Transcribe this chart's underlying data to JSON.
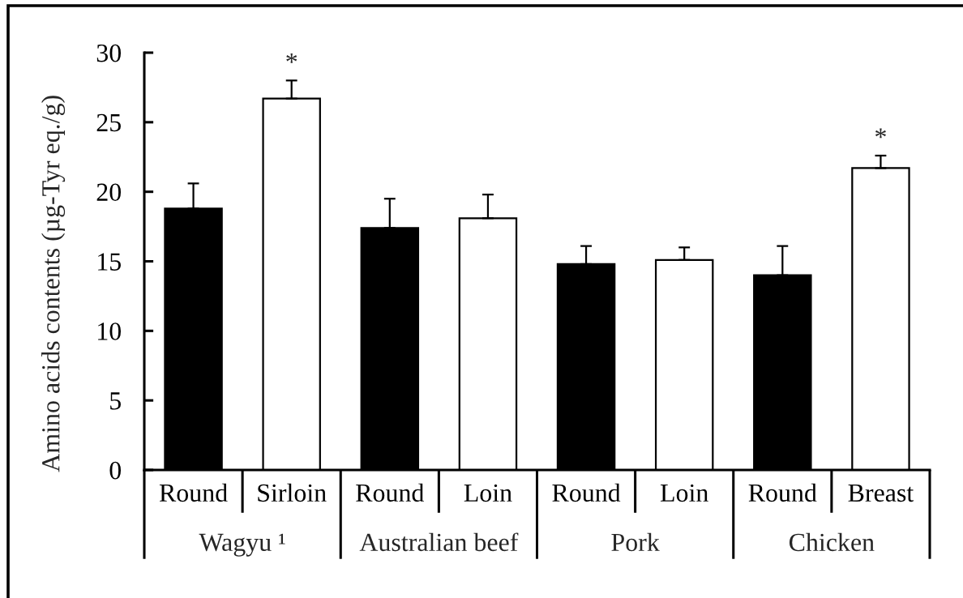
{
  "chart_data": {
    "type": "bar",
    "ylabel": "Amino acids contents (µg-Tyr eq./g)",
    "categories": [
      "Round",
      "Sirloin",
      "Round",
      "Loin",
      "Round",
      "Loin",
      "Round",
      "Breast"
    ],
    "values": [
      18.8,
      26.7,
      17.4,
      18.1,
      14.8,
      15.1,
      14.0,
      21.7
    ],
    "colors": [
      "#000000",
      "#ffffff",
      "#000000",
      "#ffffff",
      "#000000",
      "#ffffff",
      "#000000",
      "#ffffff"
    ],
    "errors": [
      [
        18.8,
        20.6
      ],
      [
        26.7,
        28.0
      ],
      [
        17.4,
        19.5
      ],
      [
        18.1,
        19.8
      ],
      [
        14.8,
        16.1
      ],
      [
        15.1,
        16.0
      ],
      [
        14.0,
        16.1
      ],
      [
        21.7,
        22.6
      ]
    ],
    "ylim": [
      0,
      30
    ],
    "yticks": [
      0,
      5,
      10,
      15,
      20,
      25,
      30
    ],
    "annotations": [
      "Wagyu ¹",
      "Australian beef",
      "Pork",
      "Chicken",
      {
        "text": "*",
        "x": "Sirloin",
        "y": 28.0
      },
      {
        "text": "*",
        "x": "Breast",
        "y": 22.6
      }
    ]
  }
}
